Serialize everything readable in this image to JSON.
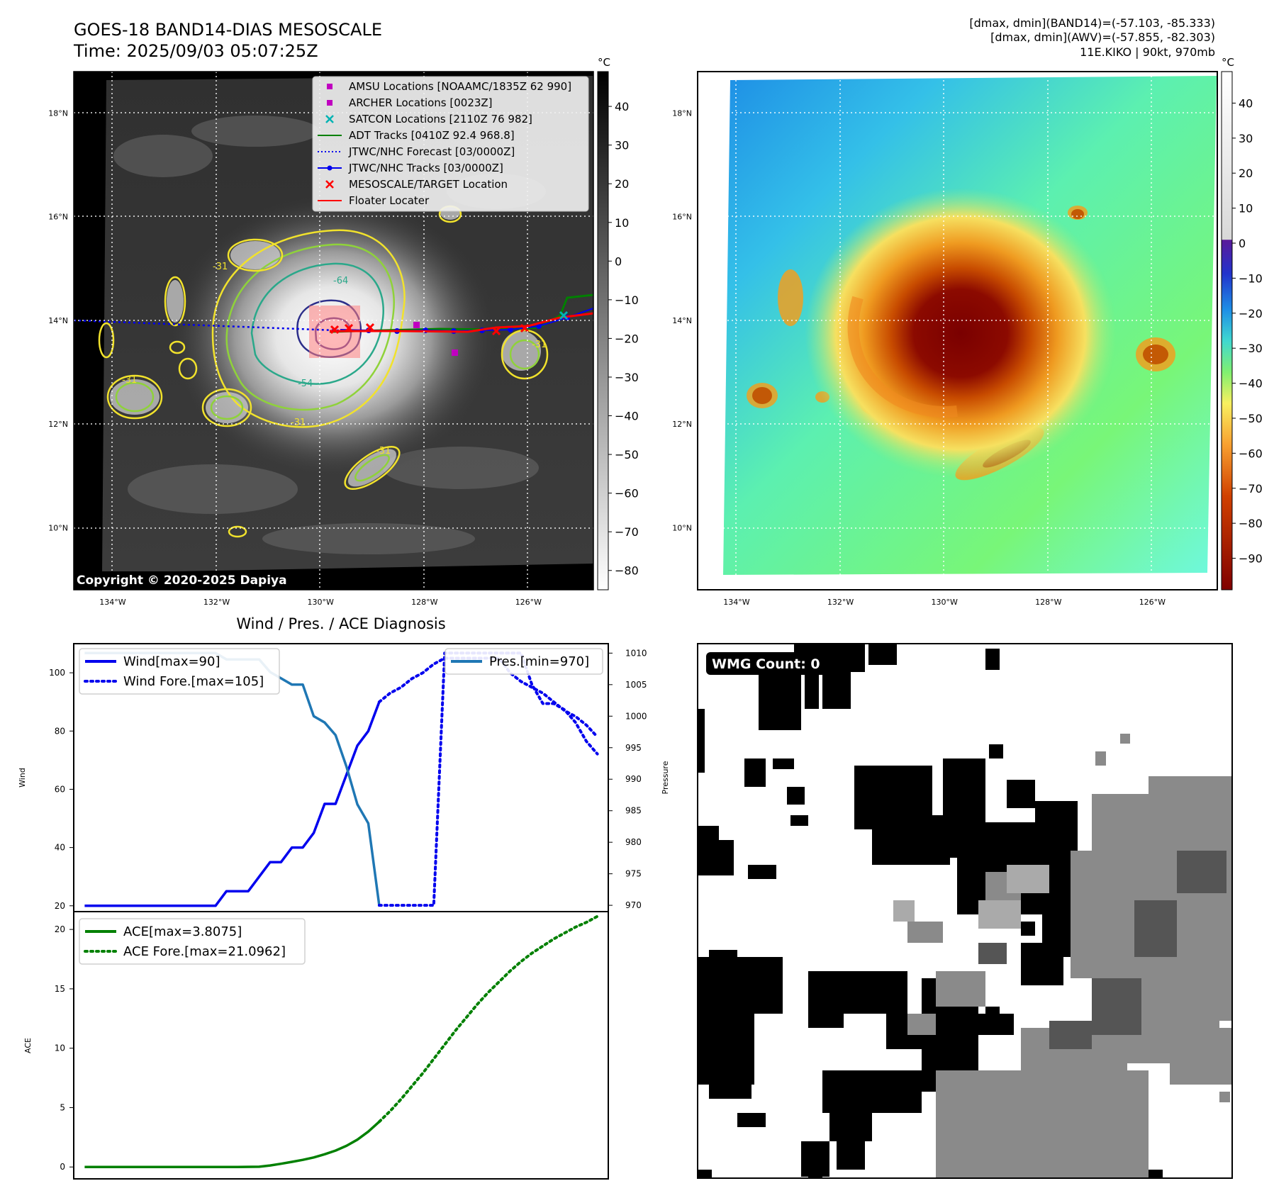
{
  "header": {
    "title_line1": "GOES-18 BAND14-DIAS MESOSCALE",
    "title_line2": "Time: 2025/09/03 05:07:25Z",
    "info_line1": "[dmax, dmin](BAND14)=(-57.103, -85.333)",
    "info_line2": "[dmax, dmin](AWV)=(-57.855, -82.303)",
    "info_line3": "11E.KIKO | 90kt, 970mb"
  },
  "map_axes": {
    "lat_labels": [
      "18°N",
      "16°N",
      "14°N",
      "12°N",
      "10°N"
    ],
    "lat_values": [
      18,
      16,
      14,
      12,
      10
    ],
    "lon_labels": [
      "134°W",
      "132°W",
      "130°W",
      "128°W",
      "126°W"
    ],
    "lon_values": [
      -134,
      -132,
      -130,
      -128,
      -126
    ],
    "lon_range": [
      -134.75,
      -124.75
    ],
    "lat_range": [
      8.8,
      18.8
    ]
  },
  "ir_panel": {
    "copyright": "Copyright © 2020-2025 Dapiya",
    "colorbar_unit": "°C",
    "colorbar_ticks": [
      "40",
      "30",
      "20",
      "10",
      "0",
      "−10",
      "−20",
      "−30",
      "−40",
      "−50",
      "−60",
      "−70",
      "−80"
    ],
    "colorbar_values": [
      40,
      30,
      20,
      10,
      0,
      -10,
      -20,
      -30,
      -40,
      -50,
      -60,
      -70,
      -80
    ],
    "colorbar_range": [
      -85,
      49
    ],
    "contour_labels": [
      "-64",
      "-54",
      "-31",
      "-31",
      "-31",
      "-31",
      "-31"
    ],
    "legend": [
      {
        "label": "AMSU Locations [NOAAMC/1835Z 62 990]",
        "kind": "square",
        "color": "#c000c0"
      },
      {
        "label": "ARCHER Locations [0023Z]",
        "kind": "square",
        "color": "#c000c0"
      },
      {
        "label": "SATCON Locations [2110Z 76 982]",
        "kind": "x",
        "color": "#00b3b3"
      },
      {
        "label": "ADT Tracks [0410Z 92.4 968.8]",
        "kind": "line",
        "color": "#008000"
      },
      {
        "label": "JTWC/NHC Forecast [03/0000Z]",
        "kind": "dotted",
        "color": "#0000ee"
      },
      {
        "label": "JTWC/NHC Tracks [03/0000Z]",
        "kind": "linedot",
        "color": "#0000ee"
      },
      {
        "label": "MESOSCALE/TARGET Location",
        "kind": "x",
        "color": "#ff0000"
      },
      {
        "label": "Floater Locater",
        "kind": "line",
        "color": "#ff0000"
      }
    ]
  },
  "awv_panel": {
    "colorbar_unit": "°C",
    "colorbar_ticks": [
      "40",
      "30",
      "20",
      "10",
      "0",
      "−10",
      "−20",
      "−30",
      "−40",
      "−50",
      "−60",
      "−70",
      "−80",
      "−90"
    ],
    "colorbar_values": [
      40,
      30,
      20,
      10,
      0,
      -10,
      -20,
      -30,
      -40,
      -50,
      -60,
      -70,
      -80,
      -90
    ],
    "colorbar_range": [
      -99,
      49
    ]
  },
  "wmg_panel": {
    "badge": "WMG Count: 0"
  },
  "colors": {
    "wind": "#0000ee",
    "pressure": "#1f77b4",
    "ace": "#008000"
  },
  "chart_data": [
    {
      "type": "line",
      "title": "Wind / Pres. / ACE Diagnosis",
      "ylabel": "Wind",
      "y2label": "Pressure",
      "ylim": [
        18,
        110
      ],
      "y2lim": [
        969,
        1011.5
      ],
      "xlim": [
        -1,
        48
      ],
      "yticks": [
        20,
        40,
        60,
        80,
        100
      ],
      "y2ticks": [
        970,
        975,
        980,
        985,
        990,
        995,
        1000,
        1005,
        1010
      ],
      "series": [
        {
          "name": "Wind[max=90]",
          "style": "solid",
          "axis": "left",
          "x": [
            0,
            1,
            2,
            3,
            4,
            5,
            6,
            7,
            8,
            9,
            10,
            11,
            12,
            13,
            14,
            15,
            16,
            17,
            18,
            19,
            20,
            21,
            22,
            23,
            24,
            25,
            26,
            27
          ],
          "values": [
            20,
            20,
            20,
            20,
            20,
            20,
            20,
            20,
            20,
            20,
            20,
            20,
            20,
            25,
            25,
            25,
            30,
            35,
            35,
            40,
            40,
            45,
            55,
            55,
            65,
            75,
            80,
            90
          ]
        },
        {
          "name": "Wind Fore.[max=105]",
          "style": "dotted",
          "axis": "left",
          "x": [
            27,
            28,
            29,
            30,
            31,
            32,
            33,
            34,
            35,
            36,
            37,
            38,
            39,
            40,
            41,
            42,
            43,
            44,
            45,
            46,
            47
          ],
          "values": [
            90,
            93,
            95,
            98,
            100,
            103,
            105,
            105,
            105,
            105,
            105,
            105,
            100,
            97,
            95,
            93,
            90,
            87,
            85,
            82,
            78
          ]
        },
        {
          "name": "Pres.[min=970]",
          "style": "solid",
          "axis": "right",
          "x": [
            0,
            1,
            2,
            3,
            4,
            5,
            6,
            7,
            8,
            9,
            10,
            11,
            12,
            13,
            14,
            15,
            16,
            17,
            18,
            19,
            20,
            21,
            22,
            23,
            24,
            25,
            26,
            27
          ],
          "values": [
            1010,
            1010,
            1010,
            1010,
            1010,
            1010,
            1010,
            1010,
            1010,
            1010,
            1010,
            1010,
            1010,
            1009,
            1009,
            1009,
            1009,
            1007,
            1006,
            1005,
            1005,
            1000,
            999,
            997,
            992,
            986,
            983,
            970
          ]
        },
        {
          "name": "",
          "style": "dotted",
          "axis": "right",
          "x": [
            27,
            28,
            29,
            30,
            31,
            32,
            33,
            34,
            35,
            36,
            37,
            38,
            39,
            40,
            41,
            42,
            43,
            44,
            45,
            46,
            47
          ],
          "values": [
            970,
            970,
            970,
            970,
            970,
            970,
            1010,
            1010,
            1010,
            1010,
            1010,
            1010,
            1010,
            1010,
            1005,
            1002,
            1002,
            1001,
            999,
            996,
            994
          ]
        }
      ],
      "legend": [
        "Wind[max=90]",
        "Wind Fore.[max=105]",
        "Pres.[min=970]"
      ]
    },
    {
      "type": "line",
      "ylabel": "ACE",
      "ylim": [
        -1,
        21.5
      ],
      "xlim": [
        -1,
        48
      ],
      "yticks": [
        0,
        5,
        10,
        15,
        20
      ],
      "series": [
        {
          "name": "ACE[max=3.8075]",
          "style": "solid",
          "x": [
            0,
            2,
            4,
            6,
            8,
            10,
            12,
            14,
            16,
            17,
            18,
            19,
            20,
            21,
            22,
            23,
            24,
            25,
            26,
            27
          ],
          "values": [
            0,
            0,
            0,
            0,
            0,
            0,
            0,
            0,
            0.02,
            0.13,
            0.27,
            0.43,
            0.6,
            0.8,
            1.07,
            1.38,
            1.78,
            2.3,
            2.98,
            3.81
          ]
        },
        {
          "name": "ACE Fore.[max=21.0962]",
          "style": "dotted",
          "x": [
            27,
            28,
            29,
            30,
            31,
            32,
            33,
            34,
            35,
            36,
            37,
            38,
            39,
            40,
            41,
            42,
            43,
            44,
            45,
            46,
            47
          ],
          "values": [
            3.81,
            4.7,
            5.7,
            6.8,
            7.9,
            9.1,
            10.3,
            11.5,
            12.6,
            13.7,
            14.7,
            15.6,
            16.5,
            17.3,
            18.0,
            18.6,
            19.2,
            19.7,
            20.2,
            20.6,
            21.1
          ]
        }
      ],
      "legend": [
        "ACE[max=3.8075]",
        "ACE Fore.[max=21.0962]"
      ]
    }
  ]
}
